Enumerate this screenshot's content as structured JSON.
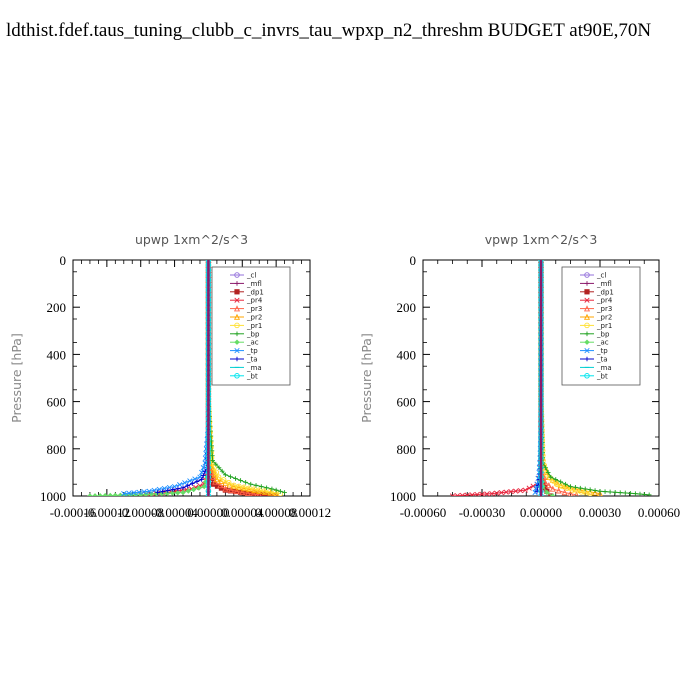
{
  "title": "ldthist.fdef.taus_tuning_clubb_c_invrs_tau_wpxp_n2_threshm  BUDGET at90E,70N",
  "legend_items": [
    "_cl",
    "_mfl",
    "_dp1",
    "_pr4",
    "_pr3",
    "_pr2",
    "_pr1",
    "_bp",
    "_ac",
    "_tp",
    "_ta",
    "_ma",
    "_bt"
  ],
  "series_colors": [
    "#9370db",
    "#8b1a6b",
    "#b22222",
    "#e8243c",
    "#ff6347",
    "#ffa500",
    "#ffe135",
    "#22a322",
    "#66dd66",
    "#1e90ff",
    "#0000cd",
    "#00ced1",
    "#00e5ee"
  ],
  "chart_data": [
    {
      "type": "line",
      "subtitle": "upwp   1xm^2/s^3",
      "ylabel": "Pressure  [hPa]",
      "ylim": [
        1000,
        0
      ],
      "yticks": [
        "0",
        "200",
        "400",
        "600",
        "800",
        "1000"
      ],
      "xlim": [
        -0.00016,
        0.00012
      ],
      "xtick_labels": [
        "-0.00016",
        "-0.00012",
        "-0.00008",
        "-0.00004",
        "0.00000",
        "0.00004",
        "0.00008",
        "0.00012"
      ],
      "legend_position": "top-right",
      "series": [
        {
          "name": "_cl",
          "x": [
            0,
            0,
            0,
            0,
            0,
            0
          ],
          "y": [
            0,
            200,
            400,
            600,
            800,
            1000
          ]
        },
        {
          "name": "_mfl",
          "x": [
            0,
            0,
            0,
            0,
            0,
            0,
            0,
            0
          ],
          "y": [
            0,
            200,
            400,
            600,
            800,
            900,
            960,
            1000
          ]
        },
        {
          "name": "_dp1",
          "x": [
            0,
            0,
            0,
            2e-06,
            6e-06,
            2e-05,
            5e-05,
            8e-05
          ],
          "y": [
            0,
            400,
            800,
            900,
            950,
            975,
            990,
            1000
          ]
        },
        {
          "name": "_pr4",
          "x": [
            0,
            0,
            0,
            -5e-06,
            -2e-05,
            -5e-05,
            -8e-05
          ],
          "y": [
            0,
            600,
            900,
            950,
            970,
            985,
            995
          ]
        },
        {
          "name": "_pr3",
          "x": [
            0,
            0,
            2e-06,
            8e-06,
            2e-05,
            4e-05,
            6e-05
          ],
          "y": [
            0,
            600,
            880,
            940,
            970,
            985,
            995
          ]
        },
        {
          "name": "_pr2",
          "x": [
            0,
            0,
            3e-06,
            1e-05,
            3e-05,
            6e-05,
            8e-05
          ],
          "y": [
            0,
            600,
            870,
            930,
            960,
            980,
            990
          ]
        },
        {
          "name": "_pr1",
          "x": [
            0,
            0,
            4e-06,
            1.2e-05,
            3e-05,
            6e-05,
            8.5e-05
          ],
          "y": [
            0,
            600,
            860,
            920,
            955,
            975,
            990
          ]
        },
        {
          "name": "_bp",
          "x": [
            0,
            0,
            5e-06,
            2e-05,
            5e-05,
            7.5e-05,
            9e-05
          ],
          "y": [
            0,
            600,
            850,
            910,
            950,
            970,
            985
          ]
        },
        {
          "name": "_ac",
          "x": [
            0,
            0,
            0,
            -5e-06,
            -3e-05,
            -8e-05,
            -0.00014
          ],
          "y": [
            0,
            700,
            900,
            960,
            985,
            995,
            1000
          ]
        },
        {
          "name": "_tp",
          "x": [
            0,
            0,
            -4e-06,
            -1e-05,
            -4e-05,
            -7e-05,
            -0.0001
          ],
          "y": [
            0,
            700,
            860,
            920,
            960,
            980,
            990
          ]
        },
        {
          "name": "_ta",
          "x": [
            0,
            0,
            -2e-06,
            -8e-06,
            -3e-05,
            -6e-05
          ],
          "y": [
            0,
            700,
            880,
            930,
            965,
            985
          ]
        },
        {
          "name": "_ma",
          "x": [
            0,
            0,
            0,
            0,
            0
          ],
          "y": [
            0,
            400,
            800,
            900,
            1000
          ]
        },
        {
          "name": "_bt",
          "x": [
            0,
            0,
            0,
            0,
            0
          ],
          "y": [
            0,
            400,
            800,
            900,
            1000
          ]
        }
      ]
    },
    {
      "type": "line",
      "subtitle": "vpwp   1xm^2/s^3",
      "ylabel": "Pressure  [hPa]",
      "ylim": [
        1000,
        0
      ],
      "yticks": [
        "0",
        "200",
        "400",
        "600",
        "800",
        "1000"
      ],
      "xlim": [
        -0.0006,
        0.0006
      ],
      "xtick_labels": [
        "-0.00060",
        "-0.00030",
        "0.00000",
        "0.00030",
        "0.00060"
      ],
      "legend_position": "top-right",
      "series": [
        {
          "name": "_cl",
          "x": [
            0,
            0,
            0,
            0,
            0,
            0
          ],
          "y": [
            0,
            200,
            400,
            600,
            800,
            1000
          ]
        },
        {
          "name": "_mfl",
          "x": [
            0,
            0,
            0,
            0,
            0,
            0,
            0
          ],
          "y": [
            0,
            200,
            400,
            600,
            800,
            900,
            1000
          ]
        },
        {
          "name": "_dp1",
          "x": [
            0,
            0,
            0,
            0,
            1e-05,
            3e-05,
            5e-05
          ],
          "y": [
            0,
            400,
            800,
            900,
            950,
            980,
            1000
          ]
        },
        {
          "name": "_pr4",
          "x": [
            0,
            0,
            0,
            -2e-05,
            -8e-05,
            -0.00025,
            -0.00045
          ],
          "y": [
            0,
            600,
            900,
            950,
            975,
            990,
            1000
          ]
        },
        {
          "name": "_pr3",
          "x": [
            0,
            0,
            5e-06,
            2e-05,
            6e-05,
            0.00012,
            0.00018
          ],
          "y": [
            0,
            600,
            880,
            940,
            970,
            985,
            995
          ]
        },
        {
          "name": "_pr2",
          "x": [
            0,
            0,
            1e-05,
            4e-05,
            0.0001,
            0.0002,
            0.0003
          ],
          "y": [
            0,
            600,
            860,
            920,
            955,
            975,
            990
          ]
        },
        {
          "name": "_pr1",
          "x": [
            0,
            0,
            1e-05,
            3e-05,
            8e-05,
            0.00016,
            0.00025
          ],
          "y": [
            0,
            600,
            850,
            910,
            950,
            975,
            990
          ]
        },
        {
          "name": "_bp",
          "x": [
            0,
            0,
            1e-05,
            5e-05,
            0.00015,
            0.0003,
            0.00048,
            0.00055
          ],
          "y": [
            0,
            600,
            860,
            920,
            960,
            980,
            990,
            995
          ]
        },
        {
          "name": "_ac",
          "x": [
            0,
            0,
            0,
            1e-05,
            3e-05,
            6e-05
          ],
          "y": [
            0,
            700,
            900,
            960,
            985,
            1000
          ]
        },
        {
          "name": "_tp",
          "x": [
            0,
            0,
            -5e-06,
            -1e-05,
            -2e-05,
            -3e-05
          ],
          "y": [
            0,
            700,
            840,
            900,
            950,
            985
          ]
        },
        {
          "name": "_ta",
          "x": [
            0,
            0,
            -3e-06,
            -8e-06,
            -2e-05
          ],
          "y": [
            0,
            700,
            860,
            930,
            980
          ]
        },
        {
          "name": "_ma",
          "x": [
            0,
            0,
            0,
            0,
            0
          ],
          "y": [
            0,
            400,
            800,
            900,
            1000
          ]
        },
        {
          "name": "_bt",
          "x": [
            0,
            0,
            0,
            0,
            0
          ],
          "y": [
            0,
            400,
            800,
            900,
            1000
          ]
        }
      ]
    }
  ]
}
